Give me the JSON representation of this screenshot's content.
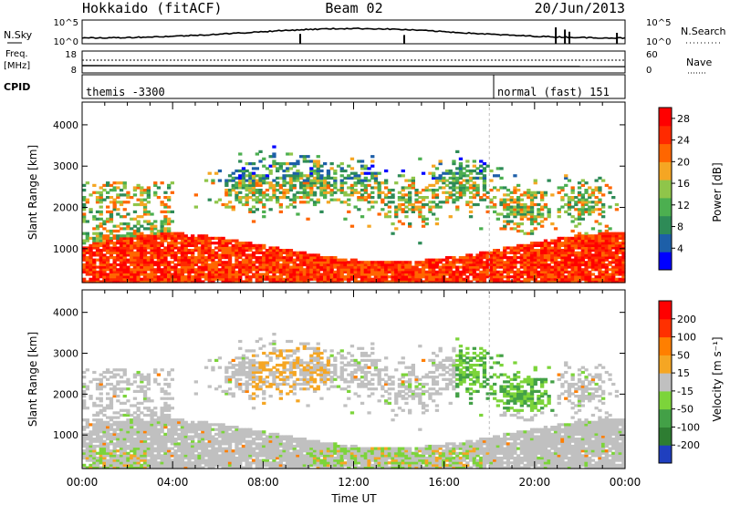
{
  "header": {
    "station": "Hokkaido (fitACF)",
    "beam": "Beam 02",
    "date": "20/Jun/2013"
  },
  "top_panels": {
    "nsky_label": "N.Sky",
    "nsky_ticks": [
      "10^5",
      "10^0"
    ],
    "nsky_right_ticks": [
      "10^5",
      "10^0"
    ],
    "nsearch_label": "N.Search",
    "freq_label_line1": "Freq.",
    "freq_label_line2": "[MHz]",
    "freq_ticks": [
      "18",
      "8"
    ],
    "nave_ticks": [
      "60",
      "0"
    ],
    "nave_label": "Nave",
    "cpid_label": "CPID",
    "cpid_modes": [
      {
        "label": "themis -3300",
        "start_hour": 0
      },
      {
        "label": "normal (fast) 151",
        "start_hour": 18
      }
    ]
  },
  "chart_data": [
    {
      "type": "heatmap",
      "name": "power",
      "ylabel": "Slant Range [km]",
      "xlabel": "",
      "x_range_hours": [
        0,
        24
      ],
      "y_range": [
        180,
        4550
      ],
      "y_ticks": [
        "4000",
        "3000",
        "2000",
        "1000"
      ],
      "y_tick_values": [
        4000,
        3000,
        2000,
        1000
      ],
      "colorbar": {
        "label": "Power [dB]",
        "ticks": [
          "28",
          "24",
          "20",
          "16",
          "12",
          "8",
          "4"
        ],
        "tick_values": [
          28,
          24,
          20,
          16,
          12,
          8,
          4
        ],
        "range": [
          0,
          30
        ],
        "colors": [
          "#0000ff",
          "#1d5fa8",
          "#2e8b57",
          "#4caf50",
          "#8fc54a",
          "#f5a623",
          "#ff6600",
          "#ff2a00",
          "#ff0000"
        ]
      }
    },
    {
      "type": "heatmap",
      "name": "velocity",
      "ylabel": "Slant Range [km]",
      "xlabel": "Time UT",
      "x_range_hours": [
        0,
        24
      ],
      "x_ticks": [
        "00:00",
        "04:00",
        "08:00",
        "12:00",
        "16:00",
        "20:00",
        "00:00"
      ],
      "x_tick_hours": [
        0,
        4,
        8,
        12,
        16,
        20,
        24
      ],
      "y_range": [
        180,
        4550
      ],
      "y_ticks": [
        "4000",
        "3000",
        "2000",
        "1000"
      ],
      "y_tick_values": [
        4000,
        3000,
        2000,
        1000
      ],
      "colorbar": {
        "label": "Velocity [m s⁻¹]",
        "ticks": [
          "200",
          "100",
          "50",
          "15",
          "-15",
          "-50",
          "-100",
          "-200"
        ],
        "colors": [
          "#1f3fbf",
          "#2e7d32",
          "#43a047",
          "#7cd43a",
          "#c0c0c0",
          "#f5a623",
          "#ff7f00",
          "#ff3000",
          "#ff0000"
        ]
      }
    }
  ]
}
